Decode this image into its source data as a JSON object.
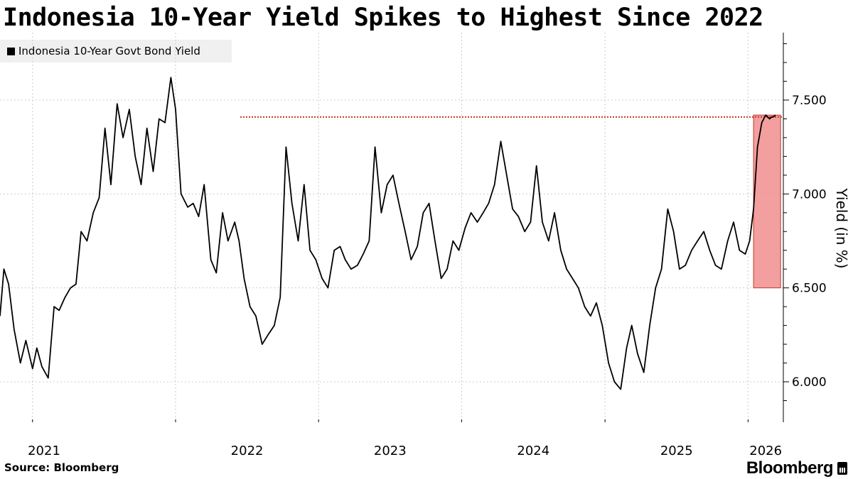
{
  "title": "Indonesia 10-Year Yield Spikes to Highest Since 2022",
  "legend_label": "Indonesia 10-Year Govt Bond Yield",
  "source": "Source: Bloomberg",
  "brand": "Bloomberg",
  "colors": {
    "line": "#000000",
    "highlight_fill": "#f28e8e",
    "highlight_border": "#c0392b",
    "reference_line": "#c0392b",
    "grid": "#cccccc"
  },
  "chart_data": {
    "type": "line",
    "title": "Indonesia 10-Year Yield Spikes to Highest Since 2022",
    "ylabel": "Yield (in %)",
    "xlabel": "",
    "ylim": [
      5.8,
      7.8
    ],
    "xlim": [
      "2020-10-10",
      "2026-04-01"
    ],
    "y_ticks": [
      6.0,
      6.5,
      7.0,
      7.5
    ],
    "y_tick_labels": [
      "6.000",
      "6.500",
      "7.000",
      "7.500"
    ],
    "x_tick_labels": [
      "2021",
      "2022",
      "2023",
      "2024",
      "2025",
      "2026"
    ],
    "x_tick_dates": [
      "2021-01-01",
      "2022-01-01",
      "2023-01-01",
      "2024-01-01",
      "2025-01-01",
      "2026-01-01"
    ],
    "grid": true,
    "legend_position": "top-left",
    "series": [
      {
        "name": "Indonesia 10-Year Govt Bond Yield",
        "x": [
          "2020-10-10",
          "2020-10-20",
          "2020-11-01",
          "2020-11-15",
          "2020-12-01",
          "2020-12-15",
          "2021-01-01",
          "2021-01-12",
          "2021-01-25",
          "2021-02-10",
          "2021-02-25",
          "2021-03-10",
          "2021-03-25",
          "2021-04-08",
          "2021-04-22",
          "2021-05-05",
          "2021-05-20",
          "2021-06-05",
          "2021-06-20",
          "2021-07-05",
          "2021-07-20",
          "2021-08-05",
          "2021-08-20",
          "2021-09-05",
          "2021-09-20",
          "2021-10-05",
          "2021-10-20",
          "2021-11-05",
          "2021-11-20",
          "2021-12-05",
          "2021-12-20",
          "2022-01-01",
          "2022-01-15",
          "2022-02-01",
          "2022-02-15",
          "2022-03-01",
          "2022-03-15",
          "2022-04-01",
          "2022-04-15",
          "2022-05-01",
          "2022-05-15",
          "2022-06-01",
          "2022-06-12",
          "2022-06-25",
          "2022-07-10",
          "2022-07-25",
          "2022-08-10",
          "2022-08-25",
          "2022-09-10",
          "2022-09-25",
          "2022-10-10",
          "2022-10-25",
          "2022-11-10",
          "2022-11-25",
          "2022-12-10",
          "2022-12-25",
          "2023-01-10",
          "2023-01-25",
          "2023-02-10",
          "2023-02-25",
          "2023-03-10",
          "2023-03-25",
          "2023-04-10",
          "2023-04-25",
          "2023-05-10",
          "2023-05-25",
          "2023-06-10",
          "2023-06-25",
          "2023-07-10",
          "2023-07-25",
          "2023-08-10",
          "2023-08-25",
          "2023-09-10",
          "2023-09-25",
          "2023-10-10",
          "2023-10-25",
          "2023-11-10",
          "2023-11-25",
          "2023-12-10",
          "2023-12-25",
          "2024-01-10",
          "2024-01-25",
          "2024-02-10",
          "2024-02-25",
          "2024-03-10",
          "2024-03-25",
          "2024-04-10",
          "2024-04-25",
          "2024-05-10",
          "2024-05-25",
          "2024-06-10",
          "2024-06-25",
          "2024-07-10",
          "2024-07-25",
          "2024-08-10",
          "2024-08-25",
          "2024-09-10",
          "2024-09-25",
          "2024-10-10",
          "2024-10-25",
          "2024-11-10",
          "2024-11-25",
          "2024-12-10",
          "2024-12-25",
          "2025-01-10",
          "2025-01-25",
          "2025-02-10",
          "2025-02-25",
          "2025-03-10",
          "2025-03-25",
          "2025-04-10",
          "2025-04-25",
          "2025-05-10",
          "2025-05-25",
          "2025-06-10",
          "2025-06-25",
          "2025-07-10",
          "2025-07-25",
          "2025-08-10",
          "2025-08-25",
          "2025-09-10",
          "2025-09-25",
          "2025-10-10",
          "2025-10-25",
          "2025-11-10",
          "2025-11-25",
          "2025-12-10",
          "2025-12-25",
          "2026-01-05",
          "2026-01-15",
          "2026-01-25",
          "2026-02-05",
          "2026-02-15",
          "2026-02-25",
          "2026-03-02",
          "2026-03-06",
          "2026-03-12"
        ],
        "y": [
          6.35,
          6.6,
          6.52,
          6.28,
          6.1,
          6.22,
          6.07,
          6.18,
          6.08,
          6.02,
          6.4,
          6.38,
          6.45,
          6.5,
          6.52,
          6.8,
          6.75,
          6.9,
          6.98,
          7.35,
          7.05,
          7.48,
          7.3,
          7.45,
          7.2,
          7.05,
          7.35,
          7.12,
          7.4,
          7.38,
          7.62,
          7.45,
          7.0,
          6.93,
          6.95,
          6.88,
          7.05,
          6.65,
          6.58,
          6.9,
          6.75,
          6.85,
          6.75,
          6.55,
          6.4,
          6.35,
          6.2,
          6.25,
          6.3,
          6.45,
          7.25,
          6.95,
          6.75,
          7.05,
          6.7,
          6.65,
          6.55,
          6.5,
          6.7,
          6.72,
          6.65,
          6.6,
          6.62,
          6.68,
          6.75,
          7.25,
          6.9,
          7.05,
          7.1,
          6.95,
          6.8,
          6.65,
          6.72,
          6.9,
          6.95,
          6.75,
          6.55,
          6.6,
          6.75,
          6.7,
          6.82,
          6.9,
          6.85,
          6.9,
          6.95,
          7.05,
          7.28,
          7.1,
          6.92,
          6.88,
          6.8,
          6.85,
          7.15,
          6.85,
          6.75,
          6.9,
          6.7,
          6.6,
          6.55,
          6.5,
          6.4,
          6.35,
          6.42,
          6.3,
          6.1,
          6.0,
          5.96,
          6.18,
          6.3,
          6.15,
          6.05,
          6.3,
          6.5,
          6.6,
          6.92,
          6.8,
          6.6,
          6.62,
          6.7,
          6.75,
          6.8,
          6.7,
          6.62,
          6.6,
          6.75,
          6.85,
          6.7,
          6.68,
          6.75,
          6.92,
          7.25,
          7.38,
          7.42,
          7.4,
          7.41,
          7.41,
          7.42
        ]
      }
    ],
    "reference_line": {
      "value": 7.41,
      "style": "dotted"
    },
    "highlight_region": {
      "x_start": "2026-01-15",
      "x_end": "2026-03-25",
      "y_start": 6.5,
      "y_end": 7.42
    }
  }
}
